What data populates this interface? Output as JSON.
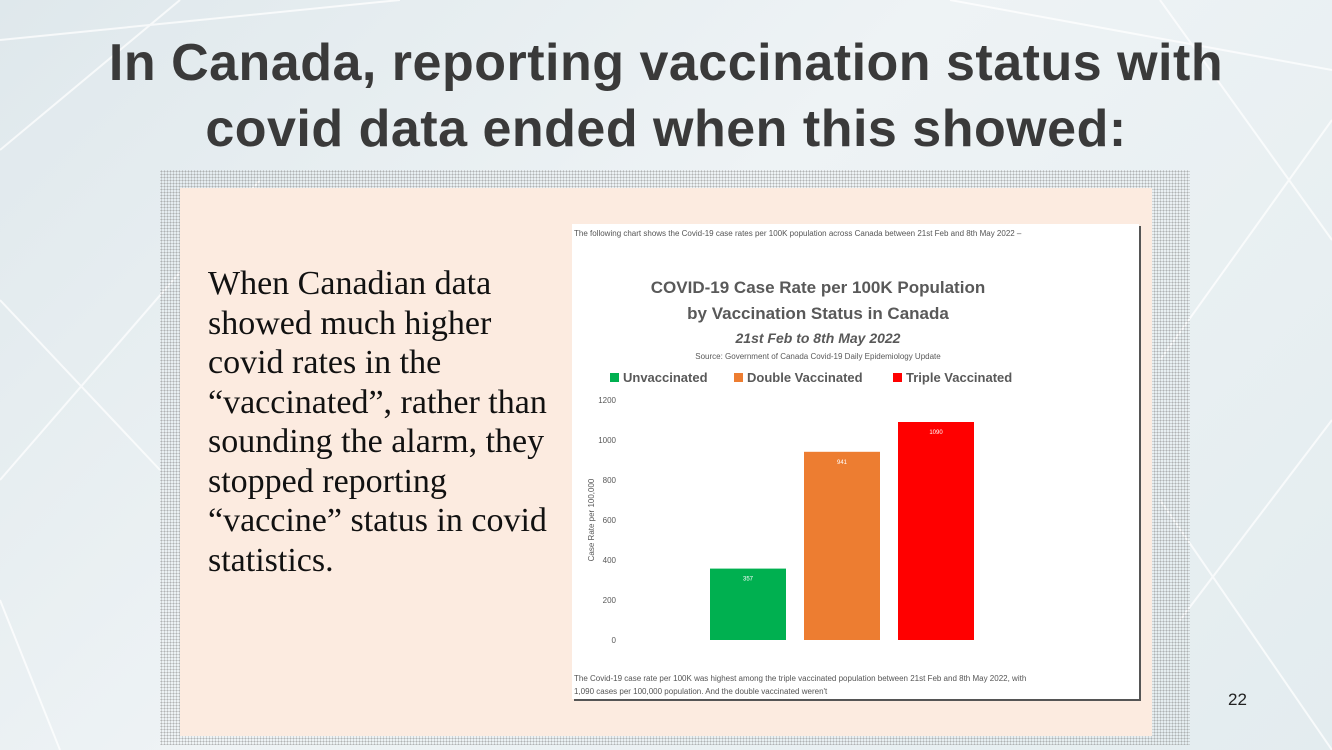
{
  "slide": {
    "title_line1": "In Canada, reporting vaccination status with",
    "title_line2": "covid data ended when this showed:",
    "body_text": "When Canadian data showed much higher covid rates in the “vaccinated”, rather than sounding the alarm, they stopped reporting “vaccine” status in covid statistics.",
    "page_number": "22"
  },
  "screenshot": {
    "caption_top": "The following chart shows the Covid-19 case rates per 100K population across Canada between 21st Feb and 8th May 2022 –",
    "caption_bottom": "The Covid-19 case rate per 100K was highest among the triple vaccinated population between 21st Feb and 8th May 2022, with 1,090 cases per 100,000 population. And the double vaccinated weren't"
  },
  "chart_data": {
    "type": "bar",
    "title": "COVID-19 Case Rate per 100K Population",
    "title_line2": "by Vaccination Status in Canada",
    "subtitle": "21st Feb to 8th May 2022",
    "source": "Source: Government of Canada Covid-19 Daily Epidemiology Update",
    "ylabel": "Case Rate per 100,000",
    "xlabel": "",
    "ylim": [
      0,
      1200
    ],
    "yticks": [
      0,
      200,
      400,
      600,
      800,
      1000,
      1200
    ],
    "grid": false,
    "legend_position": "top",
    "categories": [
      "Unvaccinated",
      "Double Vaccinated",
      "Triple Vaccinated"
    ],
    "values": [
      357,
      941,
      1090
    ],
    "data_labels": [
      "357",
      "941",
      "1090"
    ],
    "colors": [
      "#00b050",
      "#ed7d31",
      "#ff0000"
    ]
  }
}
